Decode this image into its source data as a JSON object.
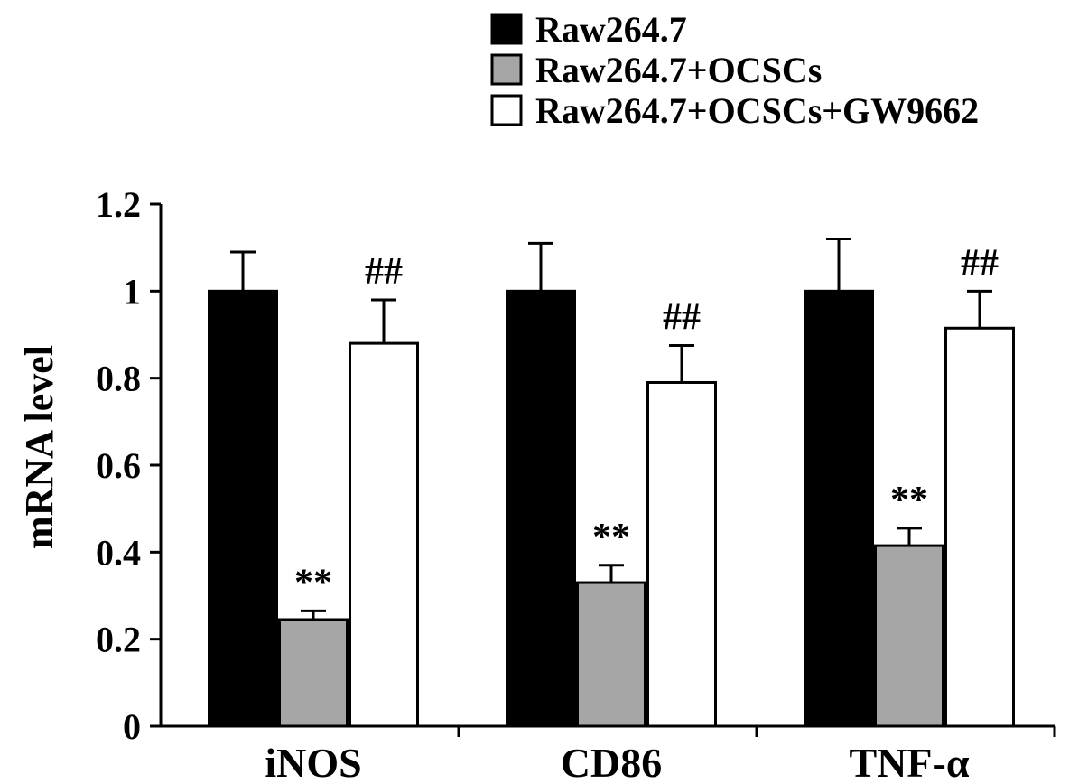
{
  "chart_data": {
    "type": "bar",
    "categories": [
      "iNOS",
      "CD86",
      "TNF-α"
    ],
    "ylabel": "mRNA level",
    "ylim": [
      0,
      1.2
    ],
    "yticks": [
      "0",
      "0.2",
      "0.4",
      "0.6",
      "0.8",
      "1",
      "1.2"
    ],
    "grid": false,
    "legend_position": "top-right",
    "series": [
      {
        "name": "Raw264.7",
        "color": "#000000",
        "values": [
          1.0,
          1.0,
          1.0
        ],
        "errors": [
          0.09,
          0.11,
          0.12
        ],
        "annotations": [
          "",
          "",
          ""
        ]
      },
      {
        "name": "Raw264.7+OCSCs",
        "color": "#a6a6a6",
        "values": [
          0.245,
          0.33,
          0.415
        ],
        "errors": [
          0.02,
          0.04,
          0.04
        ],
        "annotations": [
          "**",
          "**",
          "**"
        ]
      },
      {
        "name": "Raw264.7+OCSCs+GW9662",
        "color": "#ffffff",
        "values": [
          0.88,
          0.79,
          0.915
        ],
        "errors": [
          0.1,
          0.085,
          0.085
        ],
        "annotations": [
          "##",
          "##",
          "##"
        ]
      }
    ]
  }
}
